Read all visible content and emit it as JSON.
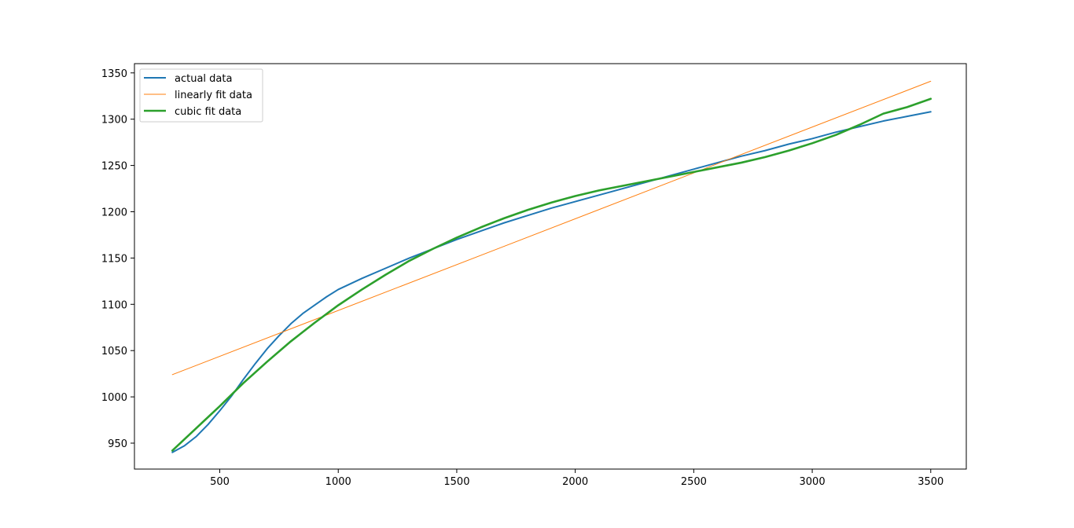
{
  "chart_data": {
    "type": "line",
    "title": "",
    "xlabel": "",
    "ylabel": "",
    "xlim": [
      140,
      3650
    ],
    "ylim": [
      922,
      1360
    ],
    "xticks": [
      500,
      1000,
      1500,
      2000,
      2500,
      3000,
      3500
    ],
    "xtick_labels": [
      "500",
      "1000",
      "1500",
      "2000",
      "2500",
      "3000",
      "3500"
    ],
    "yticks": [
      950,
      1000,
      1050,
      1100,
      1150,
      1200,
      1250,
      1300,
      1350
    ],
    "ytick_labels": [
      "950",
      "1000",
      "1050",
      "1100",
      "1150",
      "1200",
      "1250",
      "1300",
      "1350"
    ],
    "grid": false,
    "legend_position": "upper-left",
    "series": [
      {
        "name": "actual data",
        "color": "#1f77b4",
        "points": [
          [
            300,
            940
          ],
          [
            350,
            947
          ],
          [
            400,
            957
          ],
          [
            450,
            970
          ],
          [
            500,
            985
          ],
          [
            550,
            1001
          ],
          [
            600,
            1019
          ],
          [
            650,
            1036
          ],
          [
            700,
            1052
          ],
          [
            750,
            1066
          ],
          [
            800,
            1079
          ],
          [
            850,
            1090
          ],
          [
            900,
            1099
          ],
          [
            950,
            1108
          ],
          [
            1000,
            1116
          ],
          [
            1100,
            1128
          ],
          [
            1200,
            1139
          ],
          [
            1300,
            1150
          ],
          [
            1400,
            1160
          ],
          [
            1500,
            1170
          ],
          [
            1600,
            1179
          ],
          [
            1700,
            1188
          ],
          [
            1800,
            1196
          ],
          [
            1900,
            1204
          ],
          [
            2000,
            1211
          ],
          [
            2100,
            1218
          ],
          [
            2200,
            1225
          ],
          [
            2300,
            1232
          ],
          [
            2400,
            1239
          ],
          [
            2500,
            1246
          ],
          [
            2600,
            1253
          ],
          [
            2700,
            1260
          ],
          [
            2800,
            1266
          ],
          [
            2900,
            1273
          ],
          [
            3000,
            1279
          ],
          [
            3100,
            1286
          ],
          [
            3200,
            1292
          ],
          [
            3300,
            1298
          ],
          [
            3400,
            1303
          ],
          [
            3500,
            1308
          ]
        ]
      },
      {
        "name": "linearly fit data",
        "color": "#ff7f0e",
        "points": [
          [
            300,
            1024
          ],
          [
            3500,
            1341
          ]
        ]
      },
      {
        "name": "cubic fit data",
        "color": "#2ca02c",
        "points": [
          [
            300,
            942
          ],
          [
            400,
            966
          ],
          [
            500,
            990
          ],
          [
            600,
            1015
          ],
          [
            700,
            1038
          ],
          [
            800,
            1060
          ],
          [
            900,
            1080
          ],
          [
            1000,
            1099
          ],
          [
            1100,
            1116
          ],
          [
            1200,
            1132
          ],
          [
            1300,
            1147
          ],
          [
            1400,
            1160
          ],
          [
            1500,
            1172
          ],
          [
            1600,
            1183
          ],
          [
            1700,
            1193
          ],
          [
            1800,
            1202
          ],
          [
            1900,
            1210
          ],
          [
            2000,
            1217
          ],
          [
            2100,
            1223
          ],
          [
            2200,
            1228
          ],
          [
            2300,
            1233
          ],
          [
            2400,
            1238
          ],
          [
            2500,
            1243
          ],
          [
            2600,
            1248
          ],
          [
            2700,
            1253
          ],
          [
            2800,
            1259
          ],
          [
            2900,
            1266
          ],
          [
            3000,
            1274
          ],
          [
            3100,
            1283
          ],
          [
            3200,
            1294
          ],
          [
            3300,
            1306
          ],
          [
            3400,
            1313
          ],
          [
            3500,
            1322
          ]
        ]
      }
    ]
  }
}
